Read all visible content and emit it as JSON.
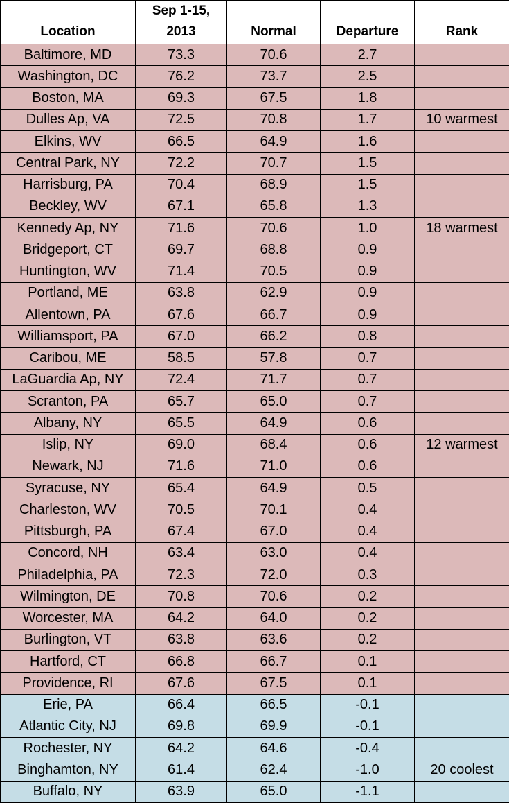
{
  "table": {
    "header": [
      "Location",
      "Sep 1-15, 2013",
      "Normal",
      "Departure",
      "Rank"
    ],
    "colors": {
      "above_normal": "#dcb9b9",
      "below_normal": "#c5dde6"
    },
    "rows": [
      {
        "location": "Baltimore, MD",
        "period": "73.3",
        "normal": "70.6",
        "departure": "2.7"
      },
      {
        "location": "Washington, DC",
        "period": "76.2",
        "normal": "73.7",
        "departure": "2.5"
      },
      {
        "location": "Boston, MA",
        "period": "69.3",
        "normal": "67.5",
        "departure": "1.8"
      },
      {
        "location": "Dulles Ap, VA",
        "period": "72.5",
        "normal": "70.8",
        "departure": "1.7",
        "rank": "10 warmest"
      },
      {
        "location": "Elkins, WV",
        "period": "66.5",
        "normal": "64.9",
        "departure": "1.6"
      },
      {
        "location": "Central Park, NY",
        "period": "72.2",
        "normal": "70.7",
        "departure": "1.5"
      },
      {
        "location": "Harrisburg, PA",
        "period": "70.4",
        "normal": "68.9",
        "departure": "1.5"
      },
      {
        "location": "Beckley, WV",
        "period": "67.1",
        "normal": "65.8",
        "departure": "1.3"
      },
      {
        "location": "Kennedy Ap, NY",
        "period": "71.6",
        "normal": "70.6",
        "departure": "1.0",
        "rank": "18 warmest"
      },
      {
        "location": "Bridgeport, CT",
        "period": "69.7",
        "normal": "68.8",
        "departure": "0.9"
      },
      {
        "location": "Huntington, WV",
        "period": "71.4",
        "normal": "70.5",
        "departure": "0.9"
      },
      {
        "location": "Portland, ME",
        "period": "63.8",
        "normal": "62.9",
        "departure": "0.9"
      },
      {
        "location": "Allentown, PA",
        "period": "67.6",
        "normal": "66.7",
        "departure": "0.9"
      },
      {
        "location": "Williamsport, PA",
        "period": "67.0",
        "normal": "66.2",
        "departure": "0.8"
      },
      {
        "location": "Caribou, ME",
        "period": "58.5",
        "normal": "57.8",
        "departure": "0.7"
      },
      {
        "location": "LaGuardia Ap, NY",
        "period": "72.4",
        "normal": "71.7",
        "departure": "0.7"
      },
      {
        "location": "Scranton, PA",
        "period": "65.7",
        "normal": "65.0",
        "departure": "0.7"
      },
      {
        "location": "Albany, NY",
        "period": "65.5",
        "normal": "64.9",
        "departure": "0.6"
      },
      {
        "location": "Islip, NY",
        "period": "69.0",
        "normal": "68.4",
        "departure": "0.6",
        "rank": "12 warmest"
      },
      {
        "location": "Newark, NJ",
        "period": "71.6",
        "normal": "71.0",
        "departure": "0.6"
      },
      {
        "location": "Syracuse, NY",
        "period": "65.4",
        "normal": "64.9",
        "departure": "0.5"
      },
      {
        "location": "Charleston, WV",
        "period": "70.5",
        "normal": "70.1",
        "departure": "0.4"
      },
      {
        "location": "Pittsburgh, PA",
        "period": "67.4",
        "normal": "67.0",
        "departure": "0.4"
      },
      {
        "location": "Concord, NH",
        "period": "63.4",
        "normal": "63.0",
        "departure": "0.4"
      },
      {
        "location": "Philadelphia, PA",
        "period": "72.3",
        "normal": "72.0",
        "departure": "0.3"
      },
      {
        "location": "Wilmington, DE",
        "period": "70.8",
        "normal": "70.6",
        "departure": "0.2"
      },
      {
        "location": "Worcester, MA",
        "period": "64.2",
        "normal": "64.0",
        "departure": "0.2"
      },
      {
        "location": "Burlington, VT",
        "period": "63.8",
        "normal": "63.6",
        "departure": "0.2"
      },
      {
        "location": "Hartford, CT",
        "period": "66.8",
        "normal": "66.7",
        "departure": "0.1"
      },
      {
        "location": "Providence, RI",
        "period": "67.6",
        "normal": "67.5",
        "departure": "0.1"
      },
      {
        "location": "Erie, PA",
        "period": "66.4",
        "normal": "66.5",
        "departure": "-0.1"
      },
      {
        "location": "Atlantic City, NJ",
        "period": "69.8",
        "normal": "69.9",
        "departure": "-0.1"
      },
      {
        "location": "Rochester, NY",
        "period": "64.2",
        "normal": "64.6",
        "departure": "-0.4"
      },
      {
        "location": "Binghamton, NY",
        "period": "61.4",
        "normal": "62.4",
        "departure": "-1.0",
        "rank": "20 coolest"
      },
      {
        "location": "Buffalo, NY",
        "period": "63.9",
        "normal": "65.0",
        "departure": "-1.1"
      }
    ]
  }
}
